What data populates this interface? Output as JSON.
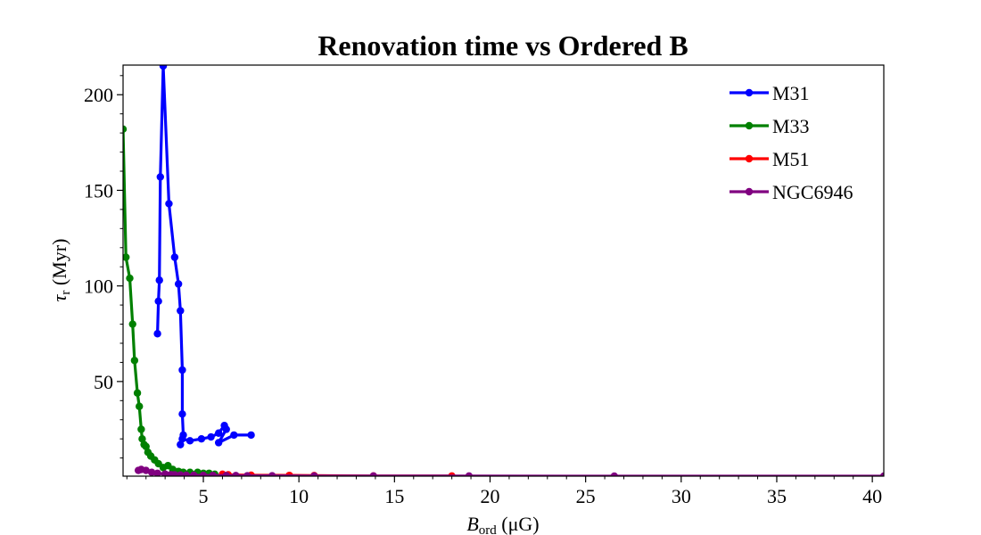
{
  "chart_data": {
    "type": "line",
    "title": "Renovation time vs Ordered B",
    "xlabel": "B_ord (μG)",
    "xlabel_parts": {
      "main": "B",
      "sub": "ord",
      "rest": " (μG)"
    },
    "ylabel": "τr (Myr)",
    "ylabel_parts": {
      "main": "τ",
      "sub": "r",
      "rest": " (Myr)"
    },
    "xlim": [
      0.8,
      40.6
    ],
    "ylim": [
      0.5,
      215.5
    ],
    "xticks": [
      5,
      10,
      15,
      20,
      25,
      30,
      35,
      40
    ],
    "yticks": [
      50,
      100,
      150,
      200
    ],
    "xtick_labels": [
      "5",
      "10",
      "15",
      "20",
      "25",
      "30",
      "35",
      "40"
    ],
    "ytick_labels": [
      "50",
      "100",
      "150",
      "200"
    ],
    "grid": false,
    "legend_position": "top-right",
    "series": [
      {
        "name": "M31",
        "color": "#0000ff",
        "x": [
          2.6,
          2.65,
          2.7,
          2.75,
          2.9,
          3.2,
          3.5,
          3.7,
          3.8,
          3.9,
          3.9,
          3.95,
          3.8,
          3.9,
          4.3,
          4.9,
          5.4,
          5.8,
          6.1,
          6.2,
          5.8,
          6.6,
          7.5
        ],
        "y": [
          75,
          92,
          103,
          157,
          215,
          143,
          115,
          101,
          87,
          56,
          33,
          22,
          17,
          20,
          19,
          20,
          21,
          23,
          27,
          25,
          18,
          22,
          22
        ]
      },
      {
        "name": "M33",
        "color": "#008000",
        "x": [
          0.8,
          0.95,
          1.15,
          1.3,
          1.4,
          1.55,
          1.65,
          1.75,
          1.8,
          1.9,
          2.0,
          2.1,
          2.25,
          2.45,
          2.65,
          2.9,
          3.15,
          3.4,
          3.7,
          3.95,
          4.3,
          4.7,
          5.0,
          5.3,
          5.6
        ],
        "y": [
          182,
          115,
          104,
          80,
          61,
          44,
          37,
          25,
          20,
          17,
          16,
          13,
          11,
          9,
          7,
          5,
          6,
          4,
          3,
          2.5,
          2.5,
          2.5,
          2,
          2,
          1.5
        ]
      },
      {
        "name": "M51",
        "color": "#ff0000",
        "x": [
          6.0,
          6.3,
          7.5,
          9.5,
          10.8,
          13.9,
          18.0
        ],
        "y": [
          1.5,
          1.2,
          1.0,
          0.9,
          0.8,
          0.6,
          0.6
        ]
      },
      {
        "name": "NGC6946",
        "color": "#800080",
        "x": [
          1.6,
          1.75,
          2.0,
          2.3,
          2.6,
          3.0,
          3.3,
          3.5,
          3.8,
          4.1,
          4.5,
          5.0,
          5.5,
          6.2,
          6.7,
          7.3,
          8.6,
          10.8,
          13.9,
          18.9,
          26.5,
          40.6
        ],
        "y": [
          3.5,
          4,
          3.5,
          2.5,
          2,
          1.6,
          1.3,
          1.2,
          1.1,
          1,
          1,
          0.9,
          0.9,
          0.8,
          0.8,
          0.7,
          0.7,
          0.6,
          0.6,
          0.6,
          0.5,
          0.5
        ]
      }
    ]
  }
}
